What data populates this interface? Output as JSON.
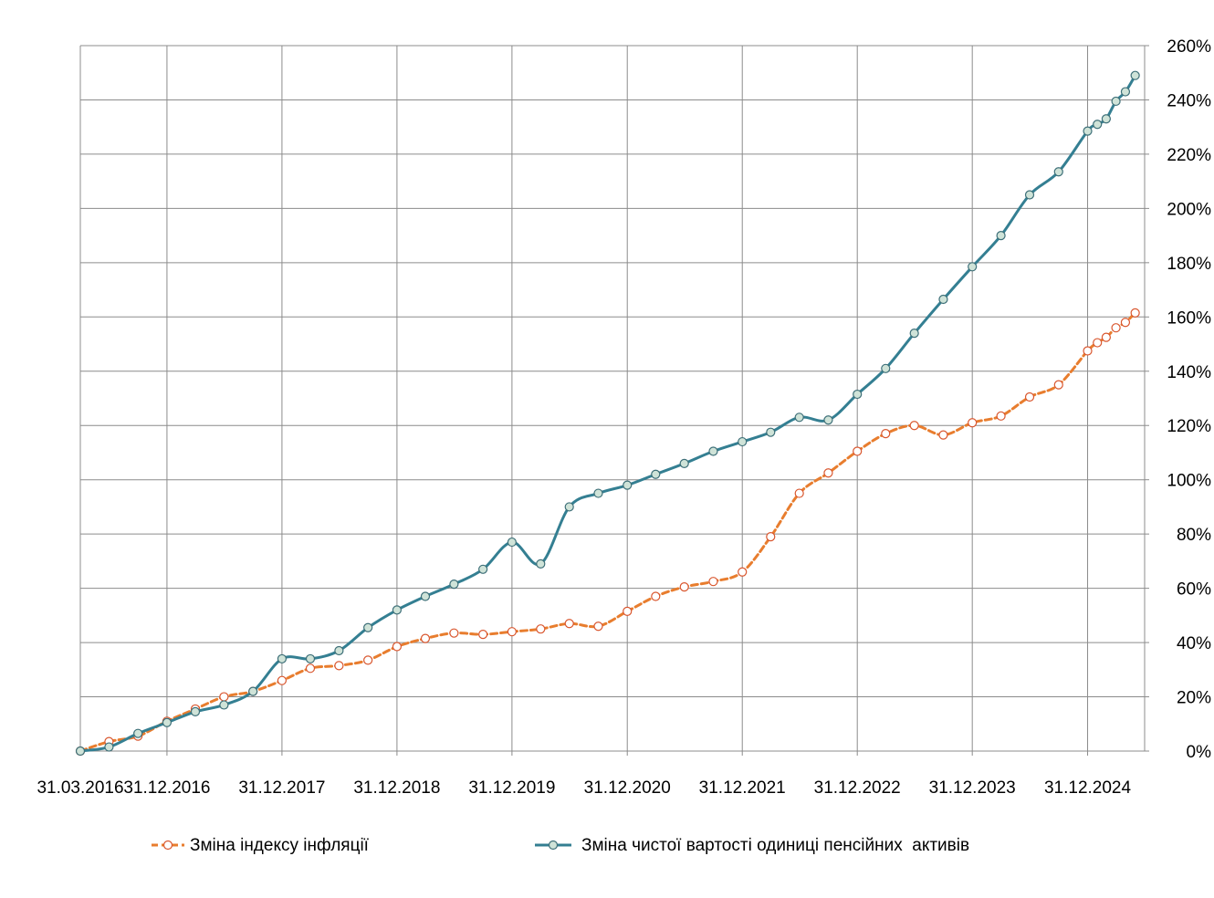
{
  "chart_data": {
    "type": "line",
    "grid": "on",
    "legend_position": "bottom",
    "y_axis_position": "right",
    "x_ticks": [
      "31.03.2016",
      "31.12.2016",
      "31.12.2017",
      "31.12.2018",
      "31.12.2019",
      "31.12.2020",
      "31.12.2021",
      "31.12.2022",
      "31.12.2023",
      "31.12.2024"
    ],
    "y_ticks": [
      "0%",
      "20%",
      "40%",
      "60%",
      "80%",
      "100%",
      "120%",
      "140%",
      "160%",
      "180%",
      "200%",
      "220%",
      "240%",
      "260%"
    ],
    "ylim": [
      0,
      260
    ],
    "xlim": [
      "31.03.2016",
      "30.06.2025"
    ],
    "series": [
      {
        "name": "Зміна індексу інфляції",
        "color": "#e87d2e",
        "style": "dashed",
        "marker": "open-circle",
        "points": [
          [
            "31.03.2016",
            0
          ],
          [
            "30.06.2016",
            3.5
          ],
          [
            "30.09.2016",
            5.5
          ],
          [
            "31.12.2016",
            11
          ],
          [
            "31.03.2017",
            15.5
          ],
          [
            "30.06.2017",
            20
          ],
          [
            "30.09.2017",
            22
          ],
          [
            "31.12.2017",
            26
          ],
          [
            "31.03.2018",
            30.5
          ],
          [
            "30.06.2018",
            31.5
          ],
          [
            "30.09.2018",
            33.5
          ],
          [
            "31.12.2018",
            38.5
          ],
          [
            "31.03.2019",
            41.5
          ],
          [
            "30.06.2019",
            43.5
          ],
          [
            "30.09.2019",
            43
          ],
          [
            "31.12.2019",
            44
          ],
          [
            "31.03.2020",
            45
          ],
          [
            "30.06.2020",
            47
          ],
          [
            "30.09.2020",
            46
          ],
          [
            "31.12.2020",
            51.5
          ],
          [
            "31.03.2021",
            57
          ],
          [
            "30.06.2021",
            60.5
          ],
          [
            "30.09.2021",
            62.5
          ],
          [
            "31.12.2021",
            66
          ],
          [
            "31.03.2022",
            79
          ],
          [
            "30.06.2022",
            95
          ],
          [
            "30.09.2022",
            102.5
          ],
          [
            "31.12.2022",
            110.5
          ],
          [
            "31.03.2023",
            117
          ],
          [
            "30.06.2023",
            120
          ],
          [
            "30.09.2023",
            116.5
          ],
          [
            "31.12.2023",
            121
          ],
          [
            "31.03.2024",
            123.5
          ],
          [
            "30.06.2024",
            130.5
          ],
          [
            "30.09.2024",
            135
          ],
          [
            "31.12.2024",
            147.5
          ],
          [
            "31.01.2025",
            150.5
          ],
          [
            "28.02.2025",
            152.5
          ],
          [
            "31.03.2025",
            156
          ],
          [
            "30.04.2025",
            158
          ],
          [
            "31.05.2025",
            161.5
          ]
        ]
      },
      {
        "name": "Зміна чистої вартості одиниці пенсійних  активів",
        "color": "#347f92",
        "style": "solid",
        "marker": "filled-circle",
        "points": [
          [
            "31.03.2016",
            0
          ],
          [
            "30.06.2016",
            1.5
          ],
          [
            "30.09.2016",
            6.5
          ],
          [
            "31.12.2016",
            10.5
          ],
          [
            "31.03.2017",
            14.5
          ],
          [
            "30.06.2017",
            17
          ],
          [
            "30.09.2017",
            22
          ],
          [
            "31.12.2017",
            34
          ],
          [
            "31.03.2018",
            34
          ],
          [
            "30.06.2018",
            37
          ],
          [
            "30.09.2018",
            45.5
          ],
          [
            "31.12.2018",
            52
          ],
          [
            "31.03.2019",
            57
          ],
          [
            "30.06.2019",
            61.5
          ],
          [
            "30.09.2019",
            67
          ],
          [
            "31.12.2019",
            77
          ],
          [
            "31.03.2020",
            69
          ],
          [
            "30.06.2020",
            90
          ],
          [
            "30.09.2020",
            95
          ],
          [
            "31.12.2020",
            98
          ],
          [
            "31.03.2021",
            102
          ],
          [
            "30.06.2021",
            106
          ],
          [
            "30.09.2021",
            110.5
          ],
          [
            "31.12.2021",
            114
          ],
          [
            "31.03.2022",
            117.5
          ],
          [
            "30.06.2022",
            123
          ],
          [
            "30.09.2022",
            122
          ],
          [
            "31.12.2022",
            131.5
          ],
          [
            "31.03.2023",
            141
          ],
          [
            "30.06.2023",
            154
          ],
          [
            "30.09.2023",
            166.5
          ],
          [
            "31.12.2023",
            178.5
          ],
          [
            "31.03.2024",
            190
          ],
          [
            "30.06.2024",
            205
          ],
          [
            "30.09.2024",
            213.5
          ],
          [
            "31.12.2024",
            228.5
          ],
          [
            "31.01.2025",
            231
          ],
          [
            "28.02.2025",
            233
          ],
          [
            "31.03.2025",
            239.5
          ],
          [
            "30.04.2025",
            243
          ],
          [
            "31.05.2025",
            249
          ]
        ]
      }
    ]
  }
}
